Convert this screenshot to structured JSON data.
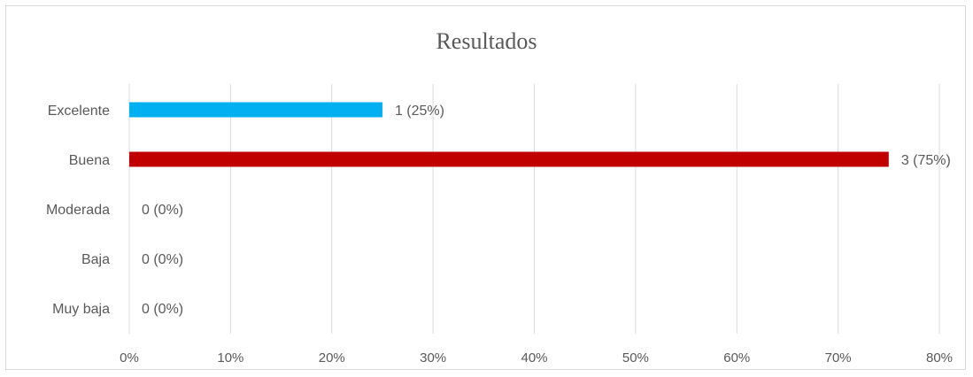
{
  "chart_data": {
    "type": "bar",
    "orientation": "horizontal",
    "title": "Resultados",
    "categories": [
      "Excelente",
      "Buena",
      "Moderada",
      "Baja",
      "Muy baja"
    ],
    "values": [
      0.25,
      0.75,
      0,
      0,
      0
    ],
    "data_labels": [
      "1 (25%)",
      "3 (75%)",
      "0 (0%)",
      "0 (0%)",
      "0 (0%)"
    ],
    "bar_colors": [
      "#00b0f0",
      "#c00000",
      "#00b0f0",
      "#00b0f0",
      "#00b0f0"
    ],
    "xlim": [
      0,
      0.8
    ],
    "x_ticks": [
      0,
      0.1,
      0.2,
      0.3,
      0.4,
      0.5,
      0.6,
      0.7,
      0.8
    ],
    "x_tick_labels": [
      "0%",
      "10%",
      "20%",
      "30%",
      "40%",
      "50%",
      "60%",
      "70%",
      "80%"
    ],
    "grid": "vertical",
    "gridline_color": "#d9d9d9",
    "legend": "none"
  }
}
